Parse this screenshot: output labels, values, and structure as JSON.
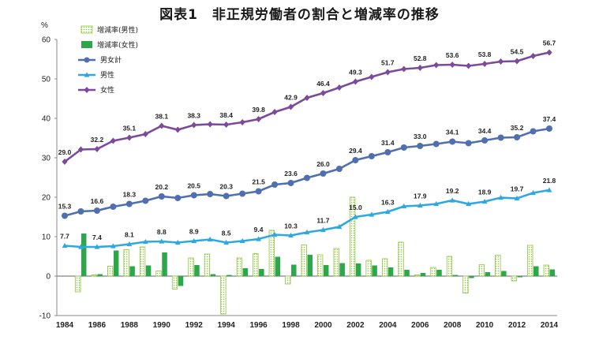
{
  "title": "図表1　非正規労働者の割合と増減率の推移",
  "chart_data": {
    "type": "bar+line",
    "title": "図表1　非正規労働者の割合と増減率の推移",
    "ylabel": "%",
    "ylim": [
      -10,
      60
    ],
    "yticks": [
      -10,
      0,
      10,
      20,
      30,
      40,
      50,
      60
    ],
    "x": [
      1984,
      1985,
      1986,
      1987,
      1988,
      1989,
      1990,
      1991,
      1992,
      1993,
      1994,
      1995,
      1996,
      1997,
      1998,
      1999,
      2000,
      2001,
      2002,
      2003,
      2004,
      2005,
      2006,
      2007,
      2008,
      2009,
      2010,
      2011,
      2012,
      2013,
      2014
    ],
    "xticks": [
      1984,
      1986,
      1988,
      1990,
      1992,
      1994,
      1996,
      1998,
      2000,
      2002,
      2004,
      2006,
      2008,
      2010,
      2012,
      2014
    ],
    "legend_position": "top-left",
    "bars": [
      {
        "name": "増減率(男性)",
        "color": "#8dc63f",
        "style": "hatched",
        "values": [
          null,
          -4.0,
          0.3,
          2.5,
          6.7,
          7.4,
          1.3,
          -3.3,
          4.6,
          5.6,
          -9.6,
          4.6,
          5.7,
          11.6,
          -2.0,
          7.9,
          5.4,
          7.0,
          20.0,
          4.0,
          4.4,
          8.6,
          0.3,
          2.2,
          5.0,
          -4.3,
          2.9,
          5.3,
          -1.2,
          7.8,
          2.8
        ]
      },
      {
        "name": "増減率(女性)",
        "color": "#2ca84a",
        "style": "solid",
        "values": [
          null,
          10.8,
          0.5,
          6.5,
          2.5,
          2.7,
          6.0,
          -2.5,
          2.8,
          0.5,
          0.3,
          2.0,
          1.8,
          4.9,
          2.9,
          5.4,
          2.8,
          3.3,
          3.2,
          2.7,
          2.2,
          1.6,
          0.8,
          1.6,
          0.3,
          -0.5,
          1.0,
          1.3,
          -0.3,
          2.5,
          1.7
        ]
      }
    ],
    "series": [
      {
        "name": "男女計",
        "color": "#4f6fae",
        "marker": "circle",
        "values": [
          15.3,
          16.4,
          16.6,
          17.6,
          18.3,
          19.1,
          20.2,
          19.8,
          20.5,
          20.8,
          20.3,
          20.9,
          21.5,
          23.2,
          23.6,
          24.9,
          26.0,
          27.2,
          29.4,
          30.4,
          31.4,
          32.6,
          33.0,
          33.5,
          34.1,
          33.7,
          34.4,
          35.1,
          35.2,
          36.7,
          37.4
        ],
        "labels": {
          "1984": "15.3",
          "1986": "16.6",
          "1988": "18.3",
          "1990": "20.2",
          "1992": "20.5",
          "1994": "20.3",
          "1996": "21.5",
          "1998": "23.6",
          "2000": "26.0",
          "2002": "29.4",
          "2004": "31.4",
          "2006": "33.0",
          "2008": "34.1",
          "2010": "34.4",
          "2012": "35.2",
          "2014": "37.4"
        }
      },
      {
        "name": "男性",
        "color": "#2fa8e0",
        "marker": "triangle",
        "values": [
          7.7,
          7.4,
          7.4,
          7.6,
          8.1,
          8.7,
          8.8,
          8.5,
          8.9,
          9.3,
          8.5,
          8.9,
          9.4,
          10.5,
          10.3,
          11.1,
          11.7,
          12.5,
          15.0,
          15.6,
          16.3,
          17.7,
          17.9,
          18.3,
          19.2,
          18.3,
          18.9,
          19.9,
          19.7,
          21.1,
          21.8
        ],
        "labels": {
          "1984": "7.7",
          "1986": "7.4",
          "1988": "8.1",
          "1990": "8.8",
          "1992": "8.9",
          "1994": "8.5",
          "1996": "9.4",
          "1998": "10.3",
          "2000": "11.7",
          "2002": "15.0",
          "2004": "16.3",
          "2006": "17.9",
          "2008": "19.2",
          "2010": "18.9",
          "2012": "19.7",
          "2014": "21.8"
        }
      },
      {
        "name": "女性",
        "color": "#7b4a9a",
        "marker": "diamond",
        "values": [
          29.0,
          32.1,
          32.2,
          34.3,
          35.1,
          36.0,
          38.1,
          37.1,
          38.3,
          38.5,
          38.4,
          39.0,
          39.8,
          41.6,
          42.9,
          45.2,
          46.4,
          47.8,
          49.3,
          50.5,
          51.7,
          52.5,
          52.8,
          53.5,
          53.6,
          53.3,
          53.8,
          54.4,
          54.5,
          55.8,
          56.7
        ],
        "labels": {
          "1984": "29.0",
          "1986": "32.2",
          "1988": "35.1",
          "1990": "38.1",
          "1992": "38.3",
          "1994": "38.4",
          "1996": "39.8",
          "1998": "42.9",
          "2000": "46.4",
          "2002": "49.3",
          "2004": "51.7",
          "2006": "52.8",
          "2008": "53.6",
          "2010": "53.8",
          "2012": "54.5",
          "2014": "56.7"
        }
      }
    ],
    "legend": [
      "増減率(男性)",
      "増減率(女性)",
      "男女計",
      "男性",
      "女性"
    ]
  }
}
